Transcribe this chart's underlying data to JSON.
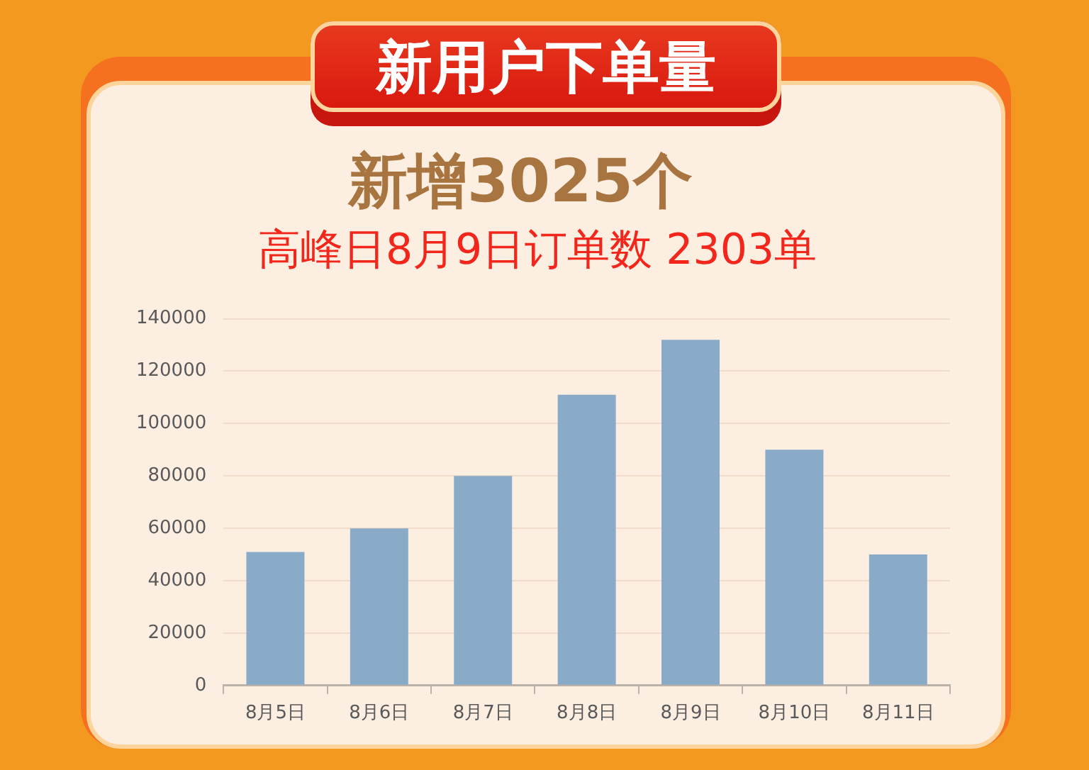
{
  "chart_data": {
    "type": "bar",
    "title": "新用户下单量",
    "subtitle": "新增3025个",
    "annotations": [
      "高峰日8月9日订单数 2303单"
    ],
    "categories": [
      "8月5日",
      "8月6日",
      "8月7日",
      "8月8日",
      "8月9日",
      "8月10日",
      "8月11日"
    ],
    "values": [
      51000,
      60000,
      80000,
      111000,
      132000,
      90000,
      50000
    ],
    "color": "#8aabc8",
    "ylim": [
      0,
      140000
    ],
    "yticks": [
      0,
      20000,
      40000,
      60000,
      80000,
      100000,
      120000,
      140000
    ],
    "grid": "y"
  }
}
